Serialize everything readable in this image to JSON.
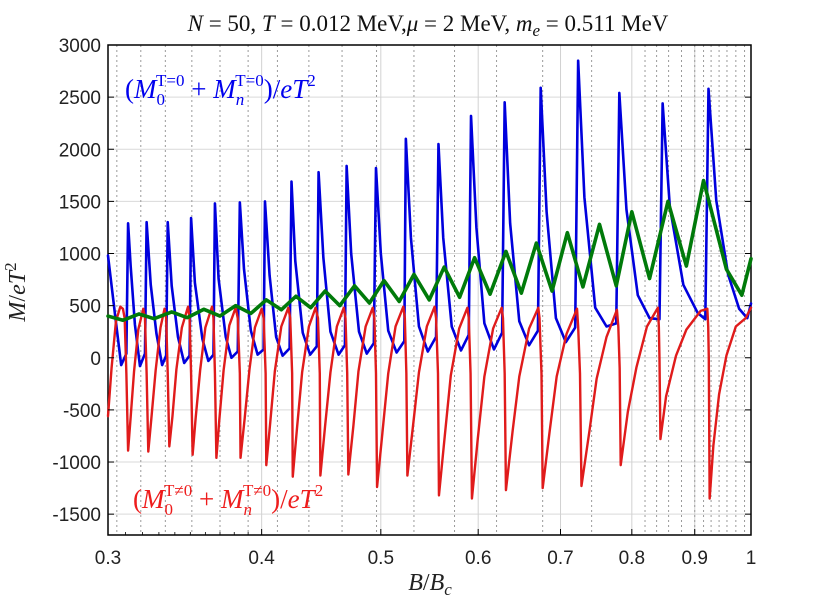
{
  "chart_data": {
    "type": "line",
    "title": {
      "N": "N",
      "eq1": " = 50, ",
      "T": "T",
      "eq2": " = 0.012 MeV,",
      "mu": "μ",
      "eq3": " = 2 MeV, ",
      "m": "m",
      "e": "e",
      "eq4": " = 0.511 MeV"
    },
    "xlabel": {
      "B": "B",
      "slash": "/",
      "Bc": "B",
      "c": "c"
    },
    "ylabel": {
      "M": "M",
      "slash": "/",
      "e": "e",
      "T": "T",
      "two": "2"
    },
    "x_scale": "log",
    "xlim": [
      0.3,
      1.0
    ],
    "ylim": [
      -1700,
      3000
    ],
    "x_ticks": [
      "0.3",
      "0.4",
      "0.5",
      "0.6",
      "0.7",
      "0.8",
      "0.9",
      "1"
    ],
    "y_ticks": [
      "3000",
      "2500",
      "2000",
      "1500",
      "1000",
      "500",
      "0",
      "-500",
      "-1000",
      "-1500"
    ],
    "grid": true,
    "annotations": [
      {
        "color": "#0000ee",
        "open": "(",
        "M1": "M",
        "sub1": "0",
        "sup1": "T=0",
        "plus": " + ",
        "M2": "M",
        "sub2": "n",
        "sup2": "T=0",
        "close": ")/",
        "e": "e",
        "T": "T",
        "pow": "2"
      },
      {
        "color": "#ee1c1c",
        "open": "(",
        "M1": "M",
        "sub1": "0",
        "sup1": "T≠0",
        "plus": " + ",
        "M2": "M",
        "sub2": "n",
        "sup2": "T≠0",
        "close": ")/",
        "e": "e",
        "T": "T",
        "pow": "2"
      }
    ],
    "series_colors": [
      "#0000dd",
      "#e01b1b",
      "#007a0a"
    ],
    "dotted_lines_x": [
      0.305,
      0.319,
      0.334,
      0.351,
      0.37,
      0.39,
      0.412,
      0.437,
      0.465,
      0.496,
      0.532,
      0.574,
      0.621,
      0.677,
      0.742,
      0.82,
      0.838,
      0.857,
      0.878,
      0.9,
      0.915,
      0.928,
      0.942,
      0.956,
      0.972,
      0.988
    ],
    "series": [
      {
        "points": [
          [
            0.3,
            980
          ],
          [
            0.3045,
            340
          ],
          [
            0.3075,
            -70
          ],
          [
            0.3105,
            40
          ],
          [
            0.3115,
            1290
          ],
          [
            0.313,
            880
          ],
          [
            0.3155,
            320
          ],
          [
            0.3185,
            -80
          ],
          [
            0.3215,
            40
          ],
          [
            0.3225,
            1300
          ],
          [
            0.325,
            700
          ],
          [
            0.3285,
            230
          ],
          [
            0.332,
            -70
          ],
          [
            0.3345,
            20
          ],
          [
            0.3355,
            1300
          ],
          [
            0.338,
            690
          ],
          [
            0.342,
            200
          ],
          [
            0.346,
            -50
          ],
          [
            0.3495,
            20
          ],
          [
            0.3505,
            1340
          ],
          [
            0.353,
            720
          ],
          [
            0.358,
            180
          ],
          [
            0.362,
            -30
          ],
          [
            0.3655,
            30
          ],
          [
            0.3665,
            1480
          ],
          [
            0.369,
            760
          ],
          [
            0.374,
            200
          ],
          [
            0.378,
            0
          ],
          [
            0.3825,
            60
          ],
          [
            0.384,
            1490
          ],
          [
            0.387,
            850
          ],
          [
            0.392,
            260
          ],
          [
            0.397,
            30
          ],
          [
            0.4015,
            80
          ],
          [
            0.4025,
            1500
          ],
          [
            0.406,
            790
          ],
          [
            0.411,
            200
          ],
          [
            0.416,
            20
          ],
          [
            0.4215,
            90
          ],
          [
            0.423,
            1690
          ],
          [
            0.426,
            930
          ],
          [
            0.432,
            240
          ],
          [
            0.438,
            30
          ],
          [
            0.4435,
            110
          ],
          [
            0.445,
            1780
          ],
          [
            0.449,
            960
          ],
          [
            0.455,
            250
          ],
          [
            0.462,
            30
          ],
          [
            0.4675,
            120
          ],
          [
            0.469,
            1840
          ],
          [
            0.473,
            1000
          ],
          [
            0.48,
            250
          ],
          [
            0.487,
            40
          ],
          [
            0.4935,
            140
          ],
          [
            0.4955,
            1820
          ],
          [
            0.5,
            1000
          ],
          [
            0.507,
            260
          ],
          [
            0.515,
            50
          ],
          [
            0.5225,
            160
          ],
          [
            0.524,
            2100
          ],
          [
            0.529,
            1150
          ],
          [
            0.537,
            300
          ],
          [
            0.546,
            60
          ],
          [
            0.5545,
            200
          ],
          [
            0.557,
            2050
          ],
          [
            0.562,
            1150
          ],
          [
            0.571,
            300
          ],
          [
            0.581,
            70
          ],
          [
            0.5895,
            220
          ],
          [
            0.592,
            2320
          ],
          [
            0.598,
            1250
          ],
          [
            0.607,
            330
          ],
          [
            0.618,
            80
          ],
          [
            0.6275,
            240
          ],
          [
            0.6305,
            2450
          ],
          [
            0.637,
            1290
          ],
          [
            0.648,
            350
          ],
          [
            0.66,
            120
          ],
          [
            0.671,
            260
          ],
          [
            0.6745,
            2590
          ],
          [
            0.682,
            1400
          ],
          [
            0.694,
            380
          ],
          [
            0.707,
            150
          ],
          [
            0.7195,
            290
          ],
          [
            0.7235,
            2850
          ],
          [
            0.732,
            1540
          ],
          [
            0.747,
            480
          ],
          [
            0.763,
            300
          ],
          [
            0.777,
            330
          ],
          [
            0.7815,
            2540
          ],
          [
            0.792,
            1420
          ],
          [
            0.809,
            600
          ],
          [
            0.827,
            380
          ],
          [
            0.8425,
            370
          ],
          [
            0.8475,
            2440
          ],
          [
            0.859,
            1450
          ],
          [
            0.881,
            700
          ],
          [
            0.905,
            430
          ],
          [
            0.918,
            370
          ],
          [
            0.9235,
            2580
          ],
          [
            0.937,
            1510
          ],
          [
            0.958,
            800
          ],
          [
            0.978,
            470
          ],
          [
            0.993,
            380
          ],
          [
            1.0,
            520
          ]
        ]
      },
      {
        "points": [
          [
            0.3,
            -560
          ],
          [
            0.302,
            -100
          ],
          [
            0.3045,
            350
          ],
          [
            0.307,
            490
          ],
          [
            0.3085,
            470
          ],
          [
            0.3095,
            380
          ],
          [
            0.3105,
            -150
          ],
          [
            0.3115,
            -890
          ],
          [
            0.313,
            -570
          ],
          [
            0.315,
            -130
          ],
          [
            0.3175,
            270
          ],
          [
            0.3205,
            470
          ],
          [
            0.3215,
            380
          ],
          [
            0.3225,
            -150
          ],
          [
            0.3235,
            -900
          ],
          [
            0.3255,
            -560
          ],
          [
            0.328,
            -120
          ],
          [
            0.331,
            290
          ],
          [
            0.3335,
            470
          ],
          [
            0.3345,
            380
          ],
          [
            0.3355,
            -150
          ],
          [
            0.3365,
            -850
          ],
          [
            0.3385,
            -560
          ],
          [
            0.341,
            -110
          ],
          [
            0.3445,
            290
          ],
          [
            0.3485,
            490
          ],
          [
            0.3495,
            380
          ],
          [
            0.3505,
            -150
          ],
          [
            0.3515,
            -930
          ],
          [
            0.3535,
            -580
          ],
          [
            0.3565,
            -120
          ],
          [
            0.36,
            290
          ],
          [
            0.3645,
            490
          ],
          [
            0.3655,
            380
          ],
          [
            0.3665,
            -150
          ],
          [
            0.3675,
            -960
          ],
          [
            0.3695,
            -600
          ],
          [
            0.3725,
            -120
          ],
          [
            0.3765,
            310
          ],
          [
            0.381,
            480
          ],
          [
            0.3825,
            380
          ],
          [
            0.384,
            -150
          ],
          [
            0.3845,
            -960
          ],
          [
            0.3875,
            -580
          ],
          [
            0.391,
            -110
          ],
          [
            0.395,
            290
          ],
          [
            0.4,
            470
          ],
          [
            0.4015,
            380
          ],
          [
            0.403,
            -150
          ],
          [
            0.4035,
            -1030
          ],
          [
            0.4065,
            -620
          ],
          [
            0.41,
            -130
          ],
          [
            0.415,
            300
          ],
          [
            0.4205,
            480
          ],
          [
            0.422,
            380
          ],
          [
            0.4235,
            -150
          ],
          [
            0.424,
            -1140
          ],
          [
            0.4275,
            -660
          ],
          [
            0.4315,
            -140
          ],
          [
            0.437,
            300
          ],
          [
            0.4425,
            480
          ],
          [
            0.4445,
            380
          ],
          [
            0.446,
            -150
          ],
          [
            0.4465,
            -1130
          ],
          [
            0.4505,
            -650
          ],
          [
            0.455,
            -140
          ],
          [
            0.4605,
            300
          ],
          [
            0.4665,
            480
          ],
          [
            0.468,
            380
          ],
          [
            0.4695,
            -150
          ],
          [
            0.4705,
            -1120
          ],
          [
            0.475,
            -650
          ],
          [
            0.4795,
            -130
          ],
          [
            0.486,
            300
          ],
          [
            0.4925,
            480
          ],
          [
            0.494,
            380
          ],
          [
            0.4955,
            -150
          ],
          [
            0.4965,
            -1240
          ],
          [
            0.5015,
            -720
          ],
          [
            0.507,
            -150
          ],
          [
            0.514,
            300
          ],
          [
            0.5215,
            490
          ],
          [
            0.523,
            380
          ],
          [
            0.5245,
            -150
          ],
          [
            0.5255,
            -1130
          ],
          [
            0.531,
            -660
          ],
          [
            0.537,
            -140
          ],
          [
            0.545,
            300
          ],
          [
            0.553,
            490
          ],
          [
            0.5545,
            380
          ],
          [
            0.5565,
            -150
          ],
          [
            0.5575,
            -1320
          ],
          [
            0.5635,
            -760
          ],
          [
            0.57,
            -170
          ],
          [
            0.579,
            280
          ],
          [
            0.588,
            480
          ],
          [
            0.5895,
            380
          ],
          [
            0.5915,
            -150
          ],
          [
            0.593,
            -1350
          ],
          [
            0.5995,
            -780
          ],
          [
            0.607,
            -180
          ],
          [
            0.617,
            280
          ],
          [
            0.627,
            480
          ],
          [
            0.6285,
            380
          ],
          [
            0.6305,
            -150
          ],
          [
            0.632,
            -1270
          ],
          [
            0.64,
            -700
          ],
          [
            0.648,
            -180
          ],
          [
            0.66,
            280
          ],
          [
            0.6715,
            480
          ],
          [
            0.673,
            380
          ],
          [
            0.6755,
            -150
          ],
          [
            0.677,
            -1250
          ],
          [
            0.686,
            -700
          ],
          [
            0.695,
            -180
          ],
          [
            0.708,
            230
          ],
          [
            0.722,
            470
          ],
          [
            0.7235,
            300
          ],
          [
            0.726,
            -150
          ],
          [
            0.728,
            -1230
          ],
          [
            0.739,
            -700
          ],
          [
            0.749,
            -200
          ],
          [
            0.763,
            200
          ],
          [
            0.778,
            460
          ],
          [
            0.78,
            300
          ],
          [
            0.782,
            -100
          ],
          [
            0.7835,
            -1030
          ],
          [
            0.794,
            -520
          ],
          [
            0.807,
            -90
          ],
          [
            0.823,
            300
          ],
          [
            0.84,
            480
          ],
          [
            0.8415,
            300
          ],
          [
            0.8425,
            0
          ],
          [
            0.844,
            -780
          ],
          [
            0.853,
            -370
          ],
          [
            0.869,
            20
          ],
          [
            0.886,
            270
          ],
          [
            0.91,
            450
          ],
          [
            0.9215,
            470
          ],
          [
            0.923,
            300
          ],
          [
            0.924,
            0
          ],
          [
            0.9255,
            -1350
          ],
          [
            0.932,
            -840
          ],
          [
            0.942,
            -350
          ],
          [
            0.955,
            20
          ],
          [
            0.972,
            300
          ],
          [
            0.99,
            380
          ],
          [
            1.0,
            480
          ]
        ]
      },
      {
        "points": [
          [
            0.3,
            400
          ],
          [
            0.3085,
            360
          ],
          [
            0.318,
            420
          ],
          [
            0.327,
            375
          ],
          [
            0.338,
            440
          ],
          [
            0.348,
            385
          ],
          [
            0.359,
            465
          ],
          [
            0.37,
            400
          ],
          [
            0.381,
            500
          ],
          [
            0.392,
            425
          ],
          [
            0.4035,
            555
          ],
          [
            0.415,
            460
          ],
          [
            0.4265,
            590
          ],
          [
            0.4385,
            480
          ],
          [
            0.4505,
            640
          ],
          [
            0.463,
            500
          ],
          [
            0.476,
            690
          ],
          [
            0.4895,
            525
          ],
          [
            0.503,
            740
          ],
          [
            0.5175,
            540
          ],
          [
            0.532,
            800
          ],
          [
            0.5475,
            555
          ],
          [
            0.563,
            870
          ],
          [
            0.5795,
            580
          ],
          [
            0.596,
            960
          ],
          [
            0.6135,
            610
          ],
          [
            0.632,
            1020
          ],
          [
            0.6505,
            620
          ],
          [
            0.669,
            1100
          ],
          [
            0.689,
            640
          ],
          [
            0.709,
            1200
          ],
          [
            0.73,
            680
          ],
          [
            0.753,
            1280
          ],
          [
            0.777,
            690
          ],
          [
            0.8,
            1400
          ],
          [
            0.827,
            760
          ],
          [
            0.856,
            1500
          ],
          [
            0.886,
            880
          ],
          [
            0.915,
            1700
          ],
          [
            0.955,
            850
          ],
          [
            0.983,
            600
          ],
          [
            1.0,
            950
          ]
        ]
      }
    ]
  }
}
